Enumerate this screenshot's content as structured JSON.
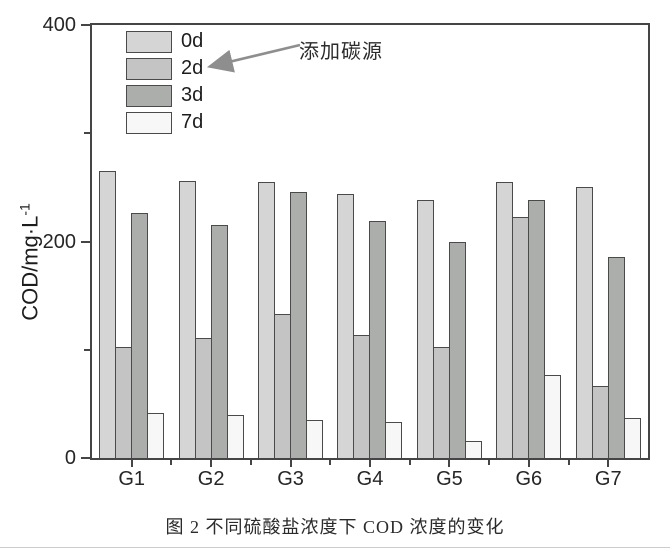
{
  "figure": {
    "caption": "图 2 不同硫酸盐浓度下 COD 浓度的变化",
    "annotation": "添加碳源"
  },
  "axis": {
    "ylabel_main": "COD/mg·L",
    "ylabel_sup": "-1"
  },
  "colors": {
    "axis": "#454545",
    "bar_border": "#4a4a4a",
    "arrow": "#8e8e8e",
    "text": "#262626"
  },
  "chart_data": {
    "type": "bar",
    "title": "",
    "xlabel": "",
    "ylabel": "COD/mg·L⁻¹",
    "categories": [
      "G1",
      "G2",
      "G3",
      "G4",
      "G5",
      "G6",
      "G7"
    ],
    "series": [
      {
        "name": "0d",
        "color": "#d4d5d4",
        "values": [
          265,
          256,
          255,
          244,
          238,
          255,
          250
        ]
      },
      {
        "name": "2d",
        "color": "#c3c4c3",
        "values": [
          103,
          111,
          133,
          114,
          103,
          223,
          67
        ]
      },
      {
        "name": "3d",
        "color": "#acaeac",
        "values": [
          226,
          215,
          246,
          219,
          200,
          238,
          186
        ]
      },
      {
        "name": "7d",
        "color": "#f7f7f7",
        "values": [
          42,
          40,
          35,
          33,
          16,
          77,
          37
        ]
      }
    ],
    "ylim": [
      0,
      400
    ],
    "yticks_major": [
      0,
      200,
      400
    ],
    "yticks_minor": [
      100,
      300
    ],
    "grid": false,
    "legend_position": "top-left",
    "annotation_text": "添加碳源",
    "annotation_target": "2d"
  }
}
